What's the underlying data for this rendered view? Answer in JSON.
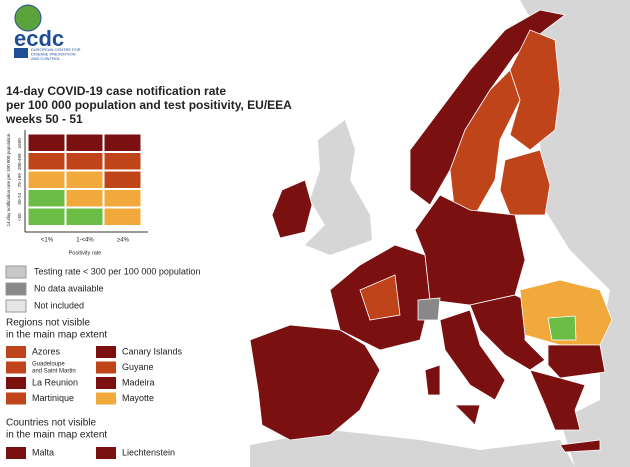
{
  "header": {
    "logo": "ecdc",
    "logo_subtitle": [
      "EUROPEAN CENTRE FOR",
      "DISEASE PREVENTION",
      "AND CONTROL"
    ],
    "title": [
      "14-day COVID-19 case notification rate",
      "per 100 000 population and test positivity, EU/EEA",
      "weeks 50 - 51"
    ]
  },
  "matrix": {
    "y_title": "14-day notification rate per 100 000 population",
    "y_labels": [
      "≥500",
      "200-499",
      "75-199",
      "50-74",
      "<50"
    ],
    "x_labels": [
      "<1%",
      "1-<4%",
      "≥4%"
    ],
    "x_title": "Positivity rate"
  },
  "legend": {
    "status": [
      "Testing rate < 300 per 100 000 population",
      "No data available",
      "Not included"
    ],
    "regions_title": [
      "Regions not visible",
      "in the main map extent"
    ],
    "regions": [
      [
        "Azores"
      ],
      [
        "Canary Islands"
      ],
      [
        "Guadeloupe",
        "and Saint Martin"
      ],
      [
        "Guyane"
      ],
      [
        "La Reunion"
      ],
      [
        "Madeira"
      ],
      [
        "Martinique"
      ],
      [
        "Mayotte"
      ]
    ],
    "countries_title": [
      "Countries not visible",
      "in the main map extent"
    ],
    "countries": [
      "Malta",
      "Liechtenstein"
    ]
  }
}
